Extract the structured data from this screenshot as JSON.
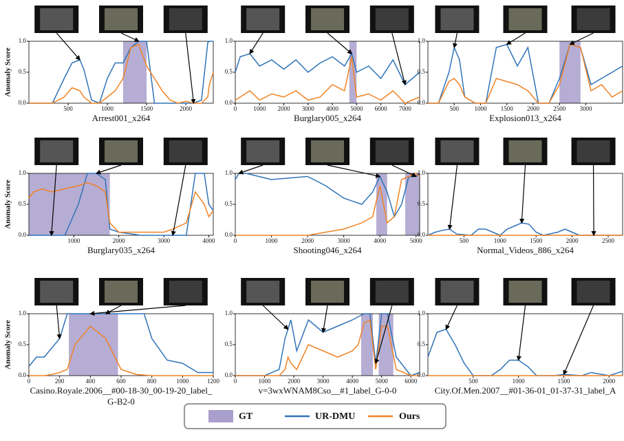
{
  "legend": [
    {
      "name": "GT",
      "color": "#a99fcc"
    },
    {
      "name": "UR-DMU",
      "color": "#2f73b8"
    },
    {
      "name": "Ours",
      "color": "#f08224"
    }
  ],
  "chart_data": [
    {
      "type": "line",
      "title": "Arrest001_x264",
      "ylabel": "Anomaly Score",
      "xlim": [
        0,
        2350
      ],
      "xticks": [
        500,
        1000,
        1500,
        2000
      ],
      "ylim": [
        0,
        1
      ],
      "yticks": [
        {
          "value": 0,
          "label": "0.0"
        },
        {
          "value": 0.5,
          "label": "0.5"
        },
        {
          "value": 1,
          "label": "1.0"
        }
      ],
      "gt": [
        [
          1200,
          1500
        ]
      ],
      "x": [
        0,
        300,
        450,
        550,
        650,
        700,
        800,
        900,
        1000,
        1100,
        1200,
        1300,
        1400,
        1500,
        1600,
        1700,
        1800,
        1900,
        2000,
        2100,
        2200,
        2280,
        2300,
        2350
      ],
      "series": [
        {
          "values": [
            0,
            0,
            0.4,
            0.65,
            0.7,
            0.55,
            0.05,
            0,
            0.4,
            0.65,
            0.65,
            0.9,
            1,
            1,
            0,
            0,
            0,
            0,
            0,
            0,
            0.05,
            0.98,
            1,
            1
          ]
        },
        {
          "values": [
            0,
            0,
            0.1,
            0.25,
            0.2,
            0.1,
            0,
            0,
            0.1,
            0.2,
            0.4,
            0.9,
            0.95,
            0.6,
            0.4,
            0.2,
            0.05,
            0,
            0.03,
            0,
            0,
            0.1,
            0.3,
            0.5
          ]
        }
      ]
    },
    {
      "type": "line",
      "title": "Burglary005_x264",
      "xlim": [
        0,
        7600
      ],
      "xticks": [
        0,
        1000,
        2000,
        3000,
        4000,
        5000,
        6000,
        7000
      ],
      "ylim": [
        0,
        1
      ],
      "yticks": [
        {
          "value": 0,
          "label": "0.0"
        },
        {
          "value": 0.5,
          "label": "0.5"
        },
        {
          "value": 1,
          "label": "1.0"
        }
      ],
      "gt": [
        [
          4700,
          5000
        ]
      ],
      "x": [
        0,
        200,
        600,
        1000,
        1500,
        2000,
        2500,
        3000,
        3500,
        4000,
        4500,
        4800,
        5000,
        5500,
        6000,
        6500,
        7000,
        7600
      ],
      "series": [
        {
          "values": [
            0.5,
            0.75,
            0.8,
            0.6,
            0.7,
            0.55,
            0.7,
            0.5,
            0.65,
            0.75,
            0.6,
            0.8,
            0.5,
            0.6,
            0.4,
            0.7,
            0.3,
            0.5
          ]
        },
        {
          "values": [
            0.05,
            0.1,
            0.2,
            0.05,
            0.15,
            0.1,
            0.2,
            0.05,
            0.1,
            0.3,
            0.2,
            0.75,
            0.1,
            0.15,
            0.05,
            0.2,
            0,
            0.1
          ]
        }
      ]
    },
    {
      "type": "line",
      "title": "Explosion013_x264",
      "xlim": [
        0,
        3700
      ],
      "xticks": [
        500,
        1000,
        1500,
        2000,
        2500,
        3000
      ],
      "ylim": [
        0,
        1
      ],
      "yticks": [
        {
          "value": 0,
          "label": "0.0"
        },
        {
          "value": 0.5,
          "label": "0.5"
        },
        {
          "value": 1,
          "label": "1.0"
        }
      ],
      "gt": [
        [
          2500,
          2900
        ]
      ],
      "x": [
        0,
        200,
        400,
        500,
        600,
        700,
        900,
        1100,
        1300,
        1500,
        1700,
        1900,
        2100,
        2300,
        2500,
        2700,
        2900,
        3100,
        3300,
        3500,
        3700
      ],
      "series": [
        {
          "values": [
            0,
            0,
            0.5,
            0.9,
            0.7,
            0.1,
            0,
            0,
            0.9,
            0.95,
            0.6,
            0.9,
            0,
            0,
            0.4,
            0.95,
            0.9,
            0.3,
            0.4,
            0.5,
            0.6
          ]
        },
        {
          "values": [
            0,
            0,
            0.35,
            0.4,
            0.3,
            0.1,
            0,
            0,
            0.4,
            0.35,
            0.3,
            0.2,
            0,
            0,
            0.3,
            0.95,
            0.9,
            0.2,
            0.3,
            0.1,
            0.2
          ]
        }
      ]
    },
    {
      "type": "line",
      "title": "Burglary035_x264",
      "ylabel": "Anomaly Score",
      "xlim": [
        0,
        4100
      ],
      "xticks": [
        1000,
        2000,
        3000,
        4000
      ],
      "ylim": [
        0,
        1
      ],
      "yticks": [
        {
          "value": 0,
          "label": "0.0"
        },
        {
          "value": 0.5,
          "label": "0.5"
        },
        {
          "value": 1,
          "label": "1.0"
        }
      ],
      "gt": [
        [
          0,
          1800
        ]
      ],
      "x": [
        0,
        100,
        300,
        500,
        800,
        1100,
        1300,
        1500,
        1700,
        1800,
        2000,
        2500,
        3000,
        3200,
        3500,
        3700,
        3900,
        4000,
        4100
      ],
      "series": [
        {
          "values": [
            0,
            0,
            0,
            0,
            0,
            0.5,
            1,
            1,
            0.9,
            0.1,
            0.05,
            0,
            0,
            0,
            0,
            1,
            1,
            0.5,
            0.4
          ]
        },
        {
          "values": [
            0.6,
            0.7,
            0.75,
            0.7,
            0.75,
            0.8,
            0.85,
            0.8,
            0.7,
            0.2,
            0.05,
            0.05,
            0.05,
            0.1,
            0.2,
            0.7,
            0.5,
            0.3,
            0.4
          ]
        }
      ]
    },
    {
      "type": "line",
      "title": "Shooting046_x264",
      "xlim": [
        0,
        5100
      ],
      "xticks": [
        0,
        1000,
        2000,
        3000,
        4000,
        5000
      ],
      "ylim": [
        0,
        1
      ],
      "yticks": [
        {
          "value": 0,
          "label": "0.0"
        },
        {
          "value": 0.5,
          "label": "0.5"
        },
        {
          "value": 1,
          "label": "1.0"
        }
      ],
      "gt": [
        [
          3900,
          4200
        ],
        [
          4700,
          5100
        ]
      ],
      "x": [
        0,
        100,
        200,
        300,
        1000,
        2000,
        2500,
        3000,
        3500,
        3800,
        4000,
        4200,
        4400,
        4600,
        4800,
        5000,
        5100
      ],
      "series": [
        {
          "values": [
            0.9,
            1,
            1,
            1,
            0.9,
            0.95,
            0.8,
            0.6,
            0.5,
            0.7,
            0.95,
            0.7,
            0.3,
            0.5,
            0.95,
            0.95,
            1
          ]
        },
        {
          "values": [
            0,
            0,
            0,
            0,
            0,
            0,
            0.05,
            0.1,
            0.2,
            0.3,
            0.8,
            0.2,
            0.3,
            0.9,
            0.95,
            1,
            0.95
          ]
        }
      ]
    },
    {
      "type": "line",
      "title": "Normal_Videos_886_x264",
      "xlim": [
        0,
        2700
      ],
      "xticks": [
        500,
        1000,
        1500,
        2000,
        2500
      ],
      "ylim": [
        0,
        1
      ],
      "yticks": [
        {
          "value": 0,
          "label": "0.0"
        },
        {
          "value": 0.5,
          "label": "0.5"
        },
        {
          "value": 1,
          "label": "1.0"
        }
      ],
      "gt": [],
      "x": [
        0,
        100,
        200,
        300,
        400,
        600,
        700,
        800,
        900,
        1000,
        1100,
        1200,
        1300,
        1400,
        1500,
        1600,
        1800,
        1900,
        2000,
        2100,
        2300,
        2700
      ],
      "series": [
        {
          "values": [
            0,
            0.05,
            0.08,
            0.1,
            0.02,
            0,
            0.1,
            0.1,
            0.05,
            0,
            0.1,
            0.15,
            0.2,
            0.18,
            0.05,
            0,
            0.05,
            0.1,
            0.05,
            0,
            0,
            0
          ]
        },
        {
          "values": [
            0,
            0,
            0,
            0,
            0,
            0,
            0,
            0,
            0,
            0,
            0,
            0,
            0,
            0,
            0,
            0,
            0,
            0,
            0,
            0,
            0,
            0
          ]
        }
      ]
    },
    {
      "type": "line",
      "title": "Casino.Royale.2006__#00-18-30_00-19-20_label_G-B2-0",
      "ylabel": "Anomaly Score",
      "xlim": [
        0,
        1200
      ],
      "xticks": [
        0,
        200,
        400,
        600,
        800,
        1000,
        1200
      ],
      "ylim": [
        0,
        1
      ],
      "yticks": [
        {
          "value": 0,
          "label": "0.0"
        },
        {
          "value": 0.5,
          "label": "0.5"
        },
        {
          "value": 1,
          "label": "1.0"
        }
      ],
      "gt": [
        [
          260,
          580
        ]
      ],
      "x": [
        0,
        50,
        100,
        150,
        200,
        250,
        300,
        400,
        500,
        600,
        700,
        750,
        800,
        900,
        1000,
        1100,
        1200
      ],
      "series": [
        {
          "values": [
            0.15,
            0.3,
            0.3,
            0.45,
            0.6,
            1,
            1,
            1,
            1,
            1,
            1,
            1,
            0.6,
            0.25,
            0.2,
            0.05,
            0.05
          ]
        },
        {
          "values": [
            0,
            0,
            0,
            0.02,
            0.05,
            0.1,
            0.5,
            0.8,
            0.6,
            0.1,
            0.02,
            0.01,
            0,
            0,
            0,
            0,
            0
          ]
        }
      ]
    },
    {
      "type": "line",
      "title": "v=3wxWNAM8Cso__#1_label_G-0-0",
      "xlim": [
        0,
        6300
      ],
      "xticks": [
        0,
        1000,
        2000,
        3000,
        4000,
        5000,
        6000
      ],
      "ylim": [
        0,
        1
      ],
      "yticks": [
        {
          "value": 0,
          "label": "0.0"
        },
        {
          "value": 0.5,
          "label": "0.5"
        },
        {
          "value": 1,
          "label": "1.0"
        }
      ],
      "gt": [
        [
          4300,
          4700
        ],
        [
          4900,
          5400
        ]
      ],
      "x": [
        0,
        1000,
        1500,
        1700,
        1800,
        1900,
        2100,
        2500,
        3000,
        3500,
        4000,
        4200,
        4400,
        4600,
        4800,
        5000,
        5200,
        5500,
        6000,
        6300
      ],
      "series": [
        {
          "values": [
            0,
            0,
            0.1,
            0.6,
            0.75,
            0.9,
            0.4,
            0.9,
            0.7,
            0.8,
            0.9,
            0.95,
            1,
            1,
            0.2,
            1,
            1,
            0.3,
            0,
            0.05
          ]
        },
        {
          "values": [
            0,
            0,
            0,
            0.1,
            0.3,
            0.2,
            0.1,
            0.5,
            0.4,
            0.3,
            0.4,
            0.5,
            0.85,
            0.9,
            0.1,
            0.8,
            0.8,
            0.1,
            0,
            0
          ]
        }
      ]
    },
    {
      "type": "line",
      "title": "City.Of.Men.2007__#01-36-01_01-37-31_label_A",
      "xlim": [
        0,
        2150
      ],
      "xticks": [
        500,
        1000,
        1500,
        2000
      ],
      "ylim": [
        0,
        1
      ],
      "yticks": [
        {
          "value": 0,
          "label": "0.0"
        },
        {
          "value": 0.5,
          "label": "0.5"
        },
        {
          "value": 1,
          "label": "1.0"
        }
      ],
      "gt": [],
      "x": [
        0,
        100,
        200,
        300,
        400,
        500,
        700,
        800,
        900,
        1000,
        1100,
        1200,
        1400,
        1500,
        1700,
        1800,
        2000,
        2150
      ],
      "series": [
        {
          "values": [
            0.3,
            0.7,
            0.75,
            0.5,
            0.2,
            0,
            0,
            0.1,
            0.25,
            0.25,
            0.15,
            0,
            0,
            0.02,
            0,
            0.05,
            0,
            0.07
          ]
        },
        {
          "values": [
            0,
            0,
            0,
            0,
            0,
            0,
            0,
            0,
            0,
            0,
            0,
            0,
            0,
            0,
            0,
            0,
            0,
            0
          ]
        }
      ]
    }
  ]
}
